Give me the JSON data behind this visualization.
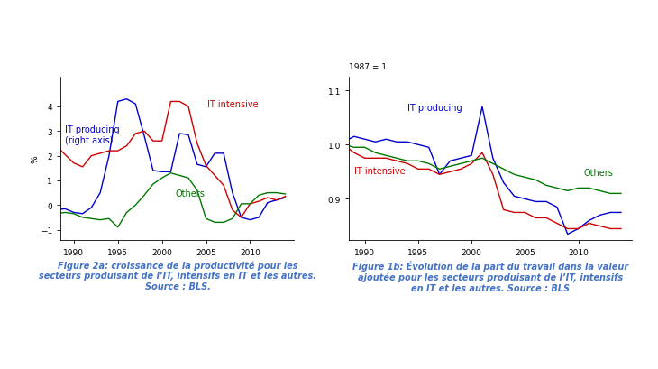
{
  "fig2a": {
    "years": [
      1988,
      1989,
      1990,
      1991,
      1992,
      1993,
      1994,
      1995,
      1996,
      1997,
      1998,
      1999,
      2000,
      2001,
      2002,
      2003,
      2004,
      2005,
      2006,
      2007,
      2008,
      2009,
      2010,
      2011,
      2012,
      2013,
      2014
    ],
    "it_producing": [
      -0.2,
      -0.15,
      -0.3,
      -0.35,
      -0.1,
      0.5,
      2.0,
      4.2,
      4.3,
      4.1,
      2.8,
      1.4,
      1.35,
      1.35,
      2.9,
      2.85,
      1.65,
      1.55,
      2.1,
      2.1,
      0.5,
      -0.5,
      -0.6,
      -0.5,
      0.1,
      0.2,
      0.3
    ],
    "it_intensive": [
      2.4,
      2.05,
      1.7,
      1.55,
      2.0,
      2.1,
      2.2,
      2.2,
      2.4,
      2.9,
      3.0,
      2.6,
      2.6,
      4.2,
      4.2,
      4.0,
      2.5,
      1.6,
      1.2,
      0.8,
      -0.2,
      -0.5,
      0.05,
      0.15,
      0.3,
      0.2,
      0.35
    ],
    "others": [
      -0.35,
      -0.3,
      -0.35,
      -0.5,
      -0.55,
      -0.6,
      -0.55,
      -0.9,
      -0.3,
      0.0,
      0.4,
      0.85,
      1.1,
      1.3,
      1.2,
      1.1,
      0.6,
      -0.55,
      -0.7,
      -0.7,
      -0.55,
      0.05,
      0.05,
      0.4,
      0.5,
      0.5,
      0.45
    ],
    "ylim": [
      -1.4,
      5.2
    ],
    "yticks": [
      -1,
      0,
      1,
      2,
      3,
      4
    ],
    "xlim": [
      1988.5,
      2015
    ],
    "xticks": [
      1990,
      1995,
      2000,
      2005,
      2010
    ],
    "ylabel": "%",
    "it_producing_color": "#0000cc",
    "it_intensive_color": "#cc0000",
    "others_color": "#007700",
    "label_it_producing": "IT producing\n(right axis)",
    "label_it_intensive": "IT intensive",
    "label_others": "Others",
    "caption": "Figure 2a: croissance de la productivité pour les\nsecteurs produisant de l’IT, intensifs en IT et les autres.\nSource : BLS."
  },
  "fig1b": {
    "years": [
      1988,
      1989,
      1990,
      1991,
      1992,
      1993,
      1994,
      1995,
      1996,
      1997,
      1998,
      1999,
      2000,
      2001,
      2002,
      2003,
      2004,
      2005,
      2006,
      2007,
      2008,
      2009,
      2010,
      2011,
      2012,
      2013,
      2014
    ],
    "it_producing": [
      1.005,
      1.015,
      1.01,
      1.005,
      1.01,
      1.005,
      1.005,
      1.0,
      0.995,
      0.945,
      0.97,
      0.975,
      0.98,
      1.07,
      0.975,
      0.93,
      0.905,
      0.9,
      0.895,
      0.895,
      0.885,
      0.835,
      0.845,
      0.86,
      0.87,
      0.875,
      0.875
    ],
    "it_intensive": [
      1.0,
      0.985,
      0.975,
      0.975,
      0.975,
      0.97,
      0.965,
      0.955,
      0.955,
      0.945,
      0.95,
      0.955,
      0.965,
      0.985,
      0.945,
      0.88,
      0.875,
      0.875,
      0.865,
      0.865,
      0.855,
      0.845,
      0.845,
      0.855,
      0.85,
      0.845,
      0.845
    ],
    "others": [
      1.0,
      0.995,
      0.995,
      0.985,
      0.98,
      0.975,
      0.97,
      0.97,
      0.965,
      0.955,
      0.96,
      0.965,
      0.97,
      0.975,
      0.965,
      0.955,
      0.945,
      0.94,
      0.935,
      0.925,
      0.92,
      0.915,
      0.92,
      0.92,
      0.915,
      0.91,
      0.91
    ],
    "ylim": [
      0.825,
      1.125
    ],
    "yticks": [
      0.9,
      1.0,
      1.1
    ],
    "xlim": [
      1988.5,
      2015
    ],
    "xticks": [
      1990,
      1995,
      2000,
      2005,
      2010
    ],
    "ylabel_title": "1987 = 1",
    "it_producing_color": "#0000cc",
    "it_intensive_color": "#cc0000",
    "others_color": "#007700",
    "label_it_producing": "IT producing",
    "label_it_intensive": "IT intensive",
    "label_others": "Others",
    "caption": "Figure 1b: Évolution de la part du travail dans la valeur\najoutée pour les secteurs produisant de l’IT, intensifs\nen IT et les autres. Source : BLS"
  },
  "background_color": "#ffffff",
  "caption_color": "#4472c4",
  "caption_fontsize": 7.0,
  "tick_fontsize": 6.5,
  "label_fontsize": 7.0
}
